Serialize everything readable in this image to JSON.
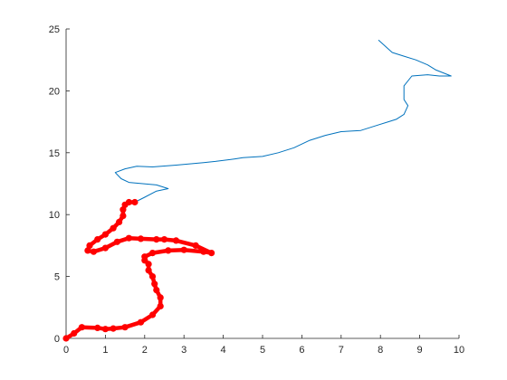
{
  "chart_data": {
    "type": "line",
    "title": "",
    "xlabel": "",
    "ylabel": "",
    "xlim": [
      0,
      10
    ],
    "ylim": [
      0,
      25
    ],
    "xticks": [
      0,
      1,
      2,
      3,
      4,
      5,
      6,
      7,
      8,
      9,
      10
    ],
    "yticks": [
      0,
      5,
      10,
      15,
      20,
      25
    ],
    "grid": false,
    "colors": {
      "blue": "#0072BD",
      "red": "#FF0000",
      "axis": "#262626"
    },
    "series": [
      {
        "style": "thin-line",
        "color": "#0072BD",
        "x": [
          1.75,
          2.0,
          2.3,
          2.6,
          2.3,
          1.6,
          1.4,
          1.25,
          1.5,
          1.8,
          2.2,
          2.8,
          3.5,
          3.8,
          4.3,
          4.5,
          5.0,
          5.4,
          5.8,
          6.2,
          6.6,
          7.0,
          7.5,
          7.9,
          8.2,
          8.4,
          8.6,
          8.7,
          8.6,
          8.6,
          8.8,
          9.2,
          9.5,
          9.8,
          9.4,
          9.2,
          8.9,
          8.6,
          8.3,
          7.95
        ],
        "y": [
          11.0,
          11.4,
          11.9,
          12.1,
          12.4,
          12.6,
          12.9,
          13.4,
          13.7,
          13.9,
          13.85,
          14.0,
          14.2,
          14.3,
          14.5,
          14.6,
          14.7,
          15.0,
          15.4,
          16.0,
          16.4,
          16.7,
          16.8,
          17.2,
          17.5,
          17.7,
          18.1,
          18.8,
          19.3,
          20.4,
          21.2,
          21.3,
          21.2,
          21.2,
          21.7,
          22.1,
          22.5,
          22.8,
          23.1,
          24.1
        ]
      },
      {
        "style": "thick-red-line",
        "color": "#FF0000",
        "x": [
          0.0,
          0.2,
          0.4,
          0.8,
          1.0,
          1.2,
          1.5,
          1.9,
          2.2,
          2.4,
          2.4,
          2.3,
          2.25,
          2.2,
          2.1,
          2.1,
          2.0,
          2.0,
          2.2,
          2.6,
          3.0,
          3.5,
          3.7,
          3.3,
          2.8,
          2.5,
          2.3,
          1.9,
          1.6,
          1.3,
          1.0,
          0.7,
          0.55,
          0.6,
          0.8,
          1.0,
          1.2,
          1.35,
          1.45,
          1.45,
          1.5,
          1.6,
          1.75
        ],
        "y": [
          0.0,
          0.4,
          0.9,
          0.85,
          0.75,
          0.8,
          0.9,
          1.3,
          1.9,
          2.6,
          3.3,
          3.9,
          4.4,
          5.0,
          5.5,
          6.0,
          6.3,
          6.6,
          6.9,
          7.1,
          7.15,
          7.0,
          6.9,
          7.5,
          7.9,
          8.0,
          8.0,
          8.05,
          8.1,
          7.8,
          7.3,
          7.0,
          7.1,
          7.5,
          8.0,
          8.4,
          8.9,
          9.4,
          9.9,
          10.4,
          10.8,
          11.0,
          11.0
        ]
      }
    ]
  }
}
